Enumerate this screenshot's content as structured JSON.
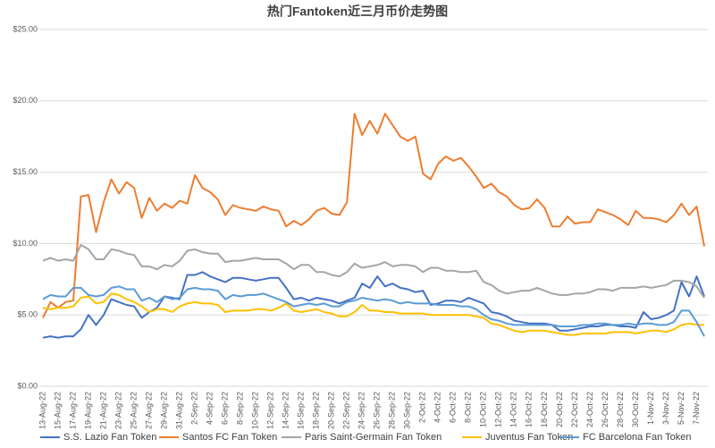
{
  "chart_data": {
    "type": "line",
    "title": "热门Fantoken近三月币价走势图",
    "categories": [
      "13-Aug-22",
      null,
      "15-Aug-22",
      null,
      "17-Aug-22",
      null,
      "19-Aug-22",
      null,
      "21-Aug-22",
      null,
      "23-Aug-22",
      null,
      "25-Aug-22",
      null,
      "27-Aug-22",
      null,
      "29-Aug-22",
      null,
      "31-Aug-22",
      null,
      "2-Sep-22",
      null,
      "4-Sep-22",
      null,
      "6-Sep-22",
      null,
      "8-Sep-22",
      null,
      "10-Sep-22",
      null,
      "12-Sep-22",
      null,
      "14-Sep-22",
      null,
      "16-Sep-22",
      null,
      "18-Sep-22",
      null,
      "20-Sep-22",
      null,
      "22-Sep-22",
      null,
      "24-Sep-22",
      null,
      "26-Sep-22",
      null,
      "28-Sep-22",
      null,
      "30-Sep-22",
      null,
      "2-Oct-22",
      null,
      "4-Oct-22",
      null,
      "6-Oct-22",
      null,
      "8-Oct-22",
      null,
      "10-Oct-22",
      null,
      "12-Oct-22",
      null,
      "14-Oct-22",
      null,
      "16-Oct-22",
      null,
      "18-Oct-22",
      null,
      "20-Oct-22",
      null,
      "22-Oct-22",
      null,
      "24-Oct-22",
      null,
      "26-Oct-22",
      null,
      "28-Oct-22",
      null,
      "30-Oct-22",
      null,
      "1-Nov-22",
      null,
      "3-Nov-22",
      null,
      "5-Nov-22",
      null,
      "7-Nov-22",
      null
    ],
    "series": [
      {
        "name": "S.S. Lazio Fan Token",
        "color": "#4472c4",
        "values": [
          3.4,
          3.5,
          3.4,
          3.5,
          3.5,
          4.0,
          5.0,
          4.3,
          5.0,
          6.1,
          5.9,
          5.7,
          5.6,
          4.8,
          5.2,
          5.5,
          6.3,
          6.2,
          6.1,
          7.8,
          7.8,
          8.0,
          7.7,
          7.5,
          7.3,
          7.6,
          7.6,
          7.5,
          7.4,
          7.5,
          7.6,
          7.6,
          6.9,
          6.1,
          6.2,
          6.0,
          6.2,
          6.1,
          6.0,
          5.8,
          6.0,
          6.2,
          7.2,
          6.9,
          7.7,
          7.0,
          7.2,
          6.9,
          6.8,
          6.6,
          6.7,
          5.7,
          5.8,
          6.0,
          6.0,
          5.9,
          6.2,
          6.0,
          5.8,
          5.2,
          5.1,
          4.9,
          4.6,
          4.5,
          4.4,
          4.4,
          4.4,
          4.3,
          3.9,
          3.9,
          4.0,
          4.1,
          4.2,
          4.2,
          4.3,
          4.3,
          4.2,
          4.2,
          4.1,
          5.2,
          4.7,
          4.8,
          5.0,
          5.3,
          7.3,
          6.3,
          7.7,
          6.3
        ]
      },
      {
        "name": "Santos FC Fan Token",
        "color": "#ed7d31",
        "values": [
          4.8,
          5.9,
          5.5,
          5.9,
          6.0,
          13.3,
          13.4,
          10.8,
          12.9,
          14.5,
          13.5,
          14.3,
          13.9,
          11.8,
          13.2,
          12.3,
          12.8,
          12.5,
          13.0,
          12.8,
          14.8,
          13.9,
          13.6,
          13.1,
          12.0,
          12.7,
          12.5,
          12.4,
          12.3,
          12.6,
          12.4,
          12.3,
          11.2,
          11.6,
          11.3,
          11.7,
          12.3,
          12.5,
          12.1,
          12.0,
          12.9,
          19.1,
          17.6,
          18.6,
          17.7,
          19.1,
          18.3,
          17.5,
          17.2,
          17.5,
          14.9,
          14.5,
          15.6,
          16.1,
          15.8,
          16.0,
          15.4,
          14.7,
          13.9,
          14.2,
          13.6,
          13.3,
          12.7,
          12.4,
          12.5,
          13.1,
          12.5,
          11.2,
          11.2,
          11.9,
          11.4,
          11.5,
          11.5,
          12.4,
          12.2,
          12.0,
          11.7,
          11.3,
          12.3,
          11.8,
          11.8,
          11.7,
          11.5,
          12.0,
          12.8,
          12.0,
          12.6,
          9.8
        ]
      },
      {
        "name": "Paris Saint-Germain Fan Token",
        "color": "#a5a5a5",
        "values": [
          8.8,
          9.0,
          8.8,
          8.9,
          8.8,
          9.9,
          9.6,
          8.9,
          8.9,
          9.6,
          9.5,
          9.3,
          9.2,
          8.4,
          8.4,
          8.2,
          8.5,
          8.4,
          8.8,
          9.5,
          9.6,
          9.4,
          9.3,
          9.3,
          8.7,
          8.8,
          8.8,
          8.9,
          9.0,
          8.9,
          8.9,
          8.9,
          8.6,
          8.2,
          8.5,
          8.5,
          8.0,
          8.0,
          7.8,
          7.7,
          8.0,
          8.6,
          8.3,
          8.4,
          8.5,
          8.7,
          8.4,
          8.5,
          8.5,
          8.4,
          8.0,
          8.3,
          8.3,
          8.1,
          8.1,
          8.0,
          8.0,
          8.1,
          7.3,
          7.1,
          6.7,
          6.5,
          6.6,
          6.7,
          6.7,
          6.9,
          6.7,
          6.5,
          6.4,
          6.4,
          6.5,
          6.5,
          6.6,
          6.8,
          6.8,
          6.7,
          6.9,
          6.9,
          6.9,
          7.0,
          6.9,
          7.0,
          7.1,
          7.4,
          7.4,
          7.3,
          7.0,
          6.2
        ]
      },
      {
        "name": "Juventus Fan Token",
        "color": "#ffc000",
        "values": [
          5.5,
          5.4,
          5.5,
          5.5,
          5.6,
          6.2,
          6.3,
          5.8,
          5.9,
          6.5,
          6.4,
          6.1,
          5.9,
          5.6,
          5.2,
          5.4,
          5.4,
          5.2,
          5.6,
          5.8,
          5.9,
          5.8,
          5.8,
          5.7,
          5.2,
          5.3,
          5.3,
          5.3,
          5.4,
          5.4,
          5.3,
          5.5,
          5.8,
          5.3,
          5.2,
          5.3,
          5.4,
          5.2,
          5.1,
          4.9,
          4.9,
          5.2,
          5.7,
          5.3,
          5.3,
          5.2,
          5.2,
          5.1,
          5.1,
          5.1,
          5.1,
          5.0,
          5.0,
          5.0,
          5.0,
          5.0,
          5.0,
          4.9,
          4.8,
          4.4,
          4.3,
          4.1,
          3.9,
          3.8,
          3.9,
          3.9,
          3.9,
          3.8,
          3.7,
          3.6,
          3.6,
          3.7,
          3.7,
          3.7,
          3.7,
          3.8,
          3.8,
          3.8,
          3.7,
          3.8,
          3.9,
          3.9,
          3.8,
          4.0,
          4.3,
          4.4,
          4.3,
          4.3
        ]
      },
      {
        "name": "FC Barcelona Fan Token",
        "color": "#5b9bd5",
        "values": [
          6.1,
          6.4,
          6.3,
          6.3,
          6.9,
          6.9,
          6.4,
          6.3,
          6.4,
          6.9,
          7.0,
          6.8,
          6.8,
          6.0,
          6.2,
          5.9,
          6.3,
          6.1,
          6.2,
          6.8,
          6.9,
          6.8,
          6.8,
          6.7,
          6.1,
          6.4,
          6.3,
          6.4,
          6.4,
          6.5,
          6.3,
          6.1,
          5.9,
          5.6,
          5.7,
          5.8,
          5.7,
          5.8,
          5.6,
          5.6,
          5.9,
          6.0,
          6.2,
          6.1,
          6.0,
          6.1,
          6.0,
          5.8,
          5.9,
          5.8,
          5.8,
          5.8,
          5.7,
          5.7,
          5.7,
          5.6,
          5.6,
          5.4,
          5.0,
          4.7,
          4.6,
          4.4,
          4.3,
          4.3,
          4.3,
          4.3,
          4.3,
          4.3,
          4.2,
          4.2,
          4.2,
          4.3,
          4.3,
          4.4,
          4.4,
          4.3,
          4.3,
          4.4,
          4.3,
          4.4,
          4.4,
          4.3,
          4.3,
          4.5,
          5.3,
          5.3,
          4.5,
          3.5
        ]
      }
    ],
    "ylim": [
      0,
      25
    ],
    "yticks": [
      {
        "value": 0,
        "label": "$0.00"
      },
      {
        "value": 5,
        "label": "$5.00"
      },
      {
        "value": 10,
        "label": "$10.00"
      },
      {
        "value": 15,
        "label": "$15.00"
      },
      {
        "value": 20,
        "label": "$20.00"
      },
      {
        "value": 25,
        "label": "$25.00"
      }
    ],
    "grid": true,
    "legend": "bottom"
  }
}
